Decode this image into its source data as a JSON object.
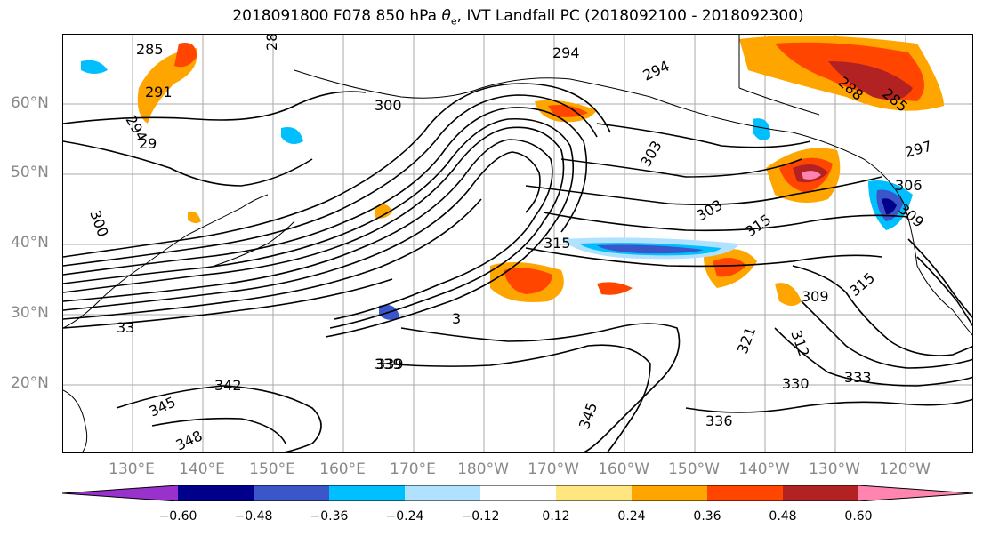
{
  "title": {
    "prefix": "2018091800 F078 850 hPa ",
    "theta": "θ",
    "sub": "e",
    "suffix": ", IVT Landfall PC (2018092100 - 2018092300)"
  },
  "lat_labels": [
    "60°N",
    "50°N",
    "40°N",
    "30°N",
    "20°N"
  ],
  "lon_labels": [
    "130°E",
    "140°E",
    "150°E",
    "160°E",
    "170°E",
    "180°W",
    "170°W",
    "160°W",
    "150°W",
    "140°W",
    "130°W",
    "120°W"
  ],
  "contour_labels": [
    "285",
    "291",
    "294",
    "29",
    "300",
    "300",
    "306",
    "309",
    "312",
    "315",
    "321",
    "330",
    "333",
    "336",
    "339",
    "342",
    "345",
    "345",
    "348",
    "28",
    "294",
    "294",
    "297",
    "288",
    "285",
    "303",
    "303",
    "315",
    "309",
    "3",
    "315",
    "339",
    "33"
  ],
  "colorbar": {
    "ticks": [
      "−0.60",
      "−0.48",
      "−0.36",
      "−0.24",
      "−0.12",
      "0.12",
      "0.24",
      "0.36",
      "0.48",
      "0.60"
    ],
    "colors": [
      "#9932cc",
      "#00008b",
      "#3a56c8",
      "#00bfff",
      "#b0e2ff",
      "#ffffff",
      "#ffe680",
      "#ffa500",
      "#ff4500",
      "#b22222",
      "#ff85b0"
    ]
  },
  "map_meta": {
    "projection": "PlateCarree",
    "lon_range": [
      "~122°E",
      "~113°W"
    ],
    "lat_range": [
      "~10°N",
      "~70°N"
    ],
    "grid": true
  }
}
